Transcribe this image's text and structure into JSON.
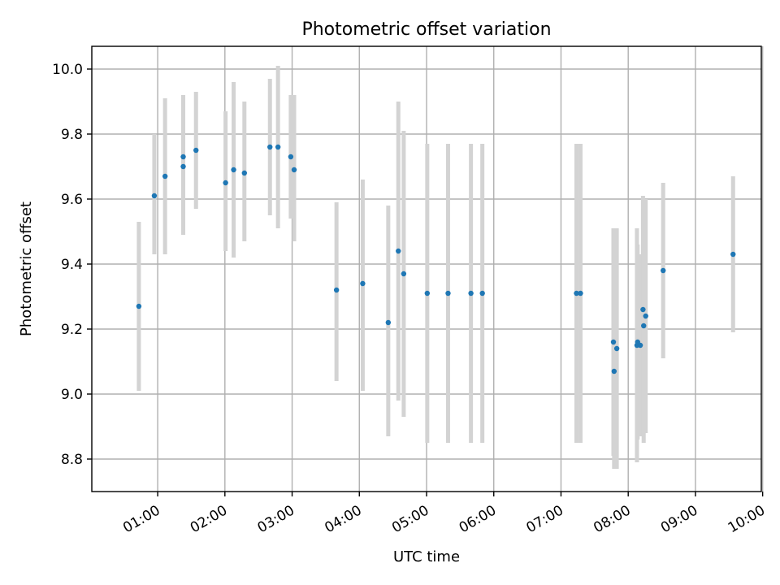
{
  "chart_data": {
    "type": "scatter",
    "title": "Photometric offset variation",
    "xlabel": "UTC time",
    "ylabel": "Photometric offset",
    "x_unit": "hours UTC",
    "xlim": [
      0.02,
      9.98
    ],
    "ylim": [
      8.7,
      10.07
    ],
    "x_ticks": [
      {
        "value": 1,
        "label": "01:00"
      },
      {
        "value": 2,
        "label": "02:00"
      },
      {
        "value": 3,
        "label": "03:00"
      },
      {
        "value": 4,
        "label": "04:00"
      },
      {
        "value": 5,
        "label": "05:00"
      },
      {
        "value": 6,
        "label": "06:00"
      },
      {
        "value": 7,
        "label": "07:00"
      },
      {
        "value": 8,
        "label": "08:00"
      },
      {
        "value": 9,
        "label": "09:00"
      },
      {
        "value": 10,
        "label": "10:00"
      }
    ],
    "y_ticks": [
      {
        "value": 8.8,
        "label": "8.8"
      },
      {
        "value": 9.0,
        "label": "9.0"
      },
      {
        "value": 9.2,
        "label": "9.2"
      },
      {
        "value": 9.4,
        "label": "9.4"
      },
      {
        "value": 9.6,
        "label": "9.6"
      },
      {
        "value": 9.8,
        "label": "9.8"
      },
      {
        "value": 10.0,
        "label": "10.0"
      }
    ],
    "grid": true,
    "legend": "none",
    "colors": {
      "point": "#1f77b4",
      "errorbar": "#d3d3d3"
    },
    "points": [
      {
        "x": 0.72,
        "y": 9.27,
        "lo": 9.01,
        "hi": 9.53
      },
      {
        "x": 0.95,
        "y": 9.61,
        "lo": 9.43,
        "hi": 9.8
      },
      {
        "x": 1.11,
        "y": 9.67,
        "lo": 9.43,
        "hi": 9.91
      },
      {
        "x": 1.38,
        "y": 9.73,
        "lo": 9.54,
        "hi": 9.92
      },
      {
        "x": 1.38,
        "y": 9.7,
        "lo": 9.49,
        "hi": 9.92
      },
      {
        "x": 1.57,
        "y": 9.75,
        "lo": 9.57,
        "hi": 9.93
      },
      {
        "x": 2.01,
        "y": 9.65,
        "lo": 9.44,
        "hi": 9.87
      },
      {
        "x": 2.13,
        "y": 9.69,
        "lo": 9.42,
        "hi": 9.96
      },
      {
        "x": 2.29,
        "y": 9.68,
        "lo": 9.47,
        "hi": 9.9
      },
      {
        "x": 2.67,
        "y": 9.76,
        "lo": 9.55,
        "hi": 9.97
      },
      {
        "x": 2.79,
        "y": 9.76,
        "lo": 9.51,
        "hi": 10.01
      },
      {
        "x": 2.98,
        "y": 9.73,
        "lo": 9.54,
        "hi": 9.92
      },
      {
        "x": 3.03,
        "y": 9.69,
        "lo": 9.47,
        "hi": 9.92
      },
      {
        "x": 3.66,
        "y": 9.32,
        "lo": 9.04,
        "hi": 9.59
      },
      {
        "x": 4.05,
        "y": 9.34,
        "lo": 9.01,
        "hi": 9.66
      },
      {
        "x": 4.43,
        "y": 9.22,
        "lo": 8.87,
        "hi": 9.58
      },
      {
        "x": 4.58,
        "y": 9.44,
        "lo": 8.98,
        "hi": 9.9
      },
      {
        "x": 4.66,
        "y": 9.37,
        "lo": 8.93,
        "hi": 9.81
      },
      {
        "x": 5.01,
        "y": 9.31,
        "lo": 8.85,
        "hi": 9.77
      },
      {
        "x": 5.32,
        "y": 9.31,
        "lo": 8.85,
        "hi": 9.77
      },
      {
        "x": 5.66,
        "y": 9.31,
        "lo": 8.85,
        "hi": 9.77
      },
      {
        "x": 5.83,
        "y": 9.31,
        "lo": 8.85,
        "hi": 9.77
      },
      {
        "x": 7.23,
        "y": 9.31,
        "lo": 8.85,
        "hi": 9.77
      },
      {
        "x": 7.29,
        "y": 9.31,
        "lo": 8.85,
        "hi": 9.77
      },
      {
        "x": 7.78,
        "y": 9.16,
        "lo": 8.81,
        "hi": 9.51
      },
      {
        "x": 7.79,
        "y": 9.07,
        "lo": 8.77,
        "hi": 9.51
      },
      {
        "x": 7.83,
        "y": 9.14,
        "lo": 8.77,
        "hi": 9.51
      },
      {
        "x": 8.13,
        "y": 9.15,
        "lo": 8.79,
        "hi": 9.51
      },
      {
        "x": 8.14,
        "y": 9.16,
        "lo": 8.86,
        "hi": 9.46
      },
      {
        "x": 8.18,
        "y": 9.15,
        "lo": 8.87,
        "hi": 9.43
      },
      {
        "x": 8.22,
        "y": 9.26,
        "lo": 8.92,
        "hi": 9.61
      },
      {
        "x": 8.23,
        "y": 9.21,
        "lo": 8.85,
        "hi": 9.57
      },
      {
        "x": 8.26,
        "y": 9.24,
        "lo": 8.88,
        "hi": 9.6
      },
      {
        "x": 8.52,
        "y": 9.38,
        "lo": 9.11,
        "hi": 9.65
      },
      {
        "x": 9.56,
        "y": 9.43,
        "lo": 9.19,
        "hi": 9.67
      }
    ]
  }
}
